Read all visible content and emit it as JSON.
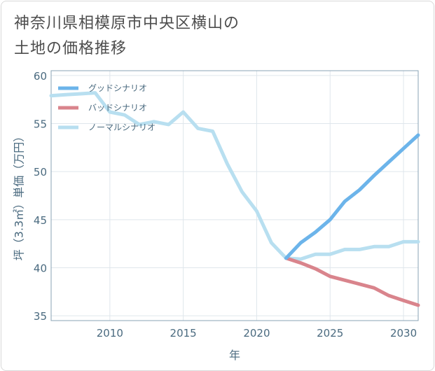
{
  "title_line1": "神奈川県相模原市中央区横山の",
  "title_line2": "土地の価格推移",
  "chart_data": {
    "type": "line",
    "xlabel": "年",
    "ylabel": "坪（3.3㎡）単価（万円）",
    "xlim": [
      2006,
      2031
    ],
    "ylim": [
      34.5,
      60.5
    ],
    "x_ticks": [
      2010,
      2015,
      2020,
      2025,
      2030
    ],
    "y_ticks": [
      35,
      40,
      45,
      50,
      55,
      60
    ],
    "grid": true,
    "legend_position": "top-left",
    "series": [
      {
        "name": "グッドシナリオ",
        "color": "#6cb4ea",
        "x": [
          2022,
          2023,
          2024,
          2025,
          2026,
          2027,
          2028,
          2029,
          2030,
          2031
        ],
        "y": [
          41.0,
          42.6,
          43.7,
          45.0,
          46.9,
          48.1,
          49.6,
          51.0,
          52.4,
          53.8
        ]
      },
      {
        "name": "バッドシナリオ",
        "color": "#d9848c",
        "x": [
          2022,
          2023,
          2024,
          2025,
          2026,
          2027,
          2028,
          2029,
          2030,
          2031
        ],
        "y": [
          41.0,
          40.5,
          39.9,
          39.1,
          38.7,
          38.3,
          37.9,
          37.1,
          36.6,
          36.1
        ]
      },
      {
        "name": "ノーマルシナリオ",
        "color": "#b8dff0",
        "x": [
          2006,
          2007,
          2008,
          2009,
          2010,
          2011,
          2012,
          2013,
          2014,
          2015,
          2016,
          2017,
          2018,
          2019,
          2020,
          2021,
          2022,
          2023,
          2024,
          2025,
          2026,
          2027,
          2028,
          2029,
          2030,
          2031
        ],
        "y": [
          57.9,
          58.0,
          58.1,
          58.2,
          56.2,
          55.9,
          54.9,
          55.2,
          54.9,
          56.2,
          54.5,
          54.2,
          50.8,
          47.9,
          45.9,
          42.6,
          41.0,
          40.9,
          41.4,
          41.4,
          41.9,
          41.9,
          42.2,
          42.2,
          42.7,
          42.7
        ]
      }
    ]
  }
}
